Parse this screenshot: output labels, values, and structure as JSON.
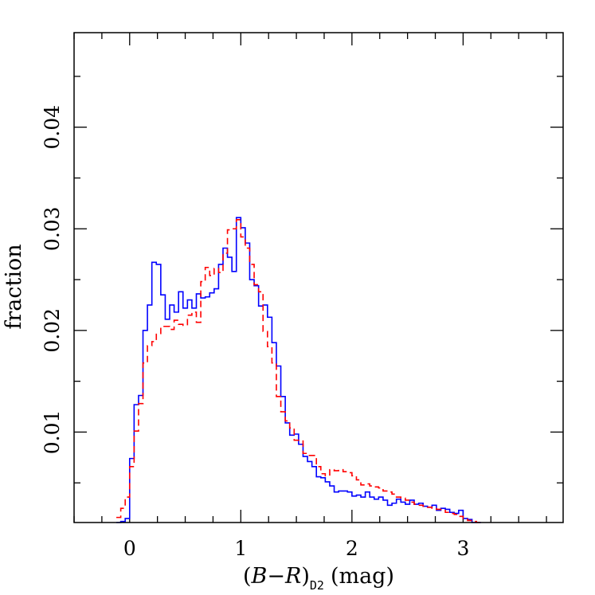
{
  "chart_data": {
    "type": "histogram",
    "xlabel": {
      "open": "(",
      "B": "B",
      "dash": "−",
      "R": "R",
      "close": ")",
      "subscript": "D2",
      "unit": "(mag)"
    },
    "ylabel": "fraction",
    "xlim": [
      -0.5,
      3.9
    ],
    "ylim": [
      0.0011,
      0.0493
    ],
    "x_ticks": [
      0,
      1,
      2,
      3
    ],
    "x_tick_labels": [
      "0",
      "1",
      "2",
      "3"
    ],
    "x_minor_step": 0.25,
    "y_ticks": [
      0.01,
      0.02,
      0.03,
      0.04
    ],
    "y_tick_labels": [
      "0.01",
      "0.02",
      "0.03",
      "0.04"
    ],
    "y_minor_step": 0.005,
    "bin_width": 0.04,
    "series": [
      {
        "style": "solid",
        "color": "#0000ff",
        "x": [
          -0.1,
          -0.06,
          -0.02,
          0.02,
          0.06,
          0.1,
          0.14,
          0.18,
          0.22,
          0.26,
          0.3,
          0.34,
          0.38,
          0.42,
          0.46,
          0.5,
          0.54,
          0.58,
          0.62,
          0.66,
          0.7,
          0.74,
          0.78,
          0.82,
          0.86,
          0.9,
          0.94,
          0.98,
          1.02,
          1.06,
          1.1,
          1.14,
          1.18,
          1.22,
          1.26,
          1.3,
          1.34,
          1.38,
          1.42,
          1.46,
          1.5,
          1.54,
          1.58,
          1.62,
          1.66,
          1.7,
          1.74,
          1.78,
          1.82,
          1.86,
          1.9,
          1.94,
          1.98,
          2.02,
          2.06,
          2.1,
          2.14,
          2.18,
          2.22,
          2.26,
          2.3,
          2.34,
          2.38,
          2.42,
          2.46,
          2.5,
          2.54,
          2.58,
          2.62,
          2.66,
          2.7,
          2.74,
          2.78,
          2.82,
          2.86,
          2.9,
          2.94,
          2.98,
          3.02,
          3.06,
          3.1,
          3.14
        ],
        "y": [
          0.0011,
          0.0012,
          0.0015,
          0.0074,
          0.0127,
          0.0136,
          0.02,
          0.0225,
          0.0267,
          0.0265,
          0.0235,
          0.0211,
          0.0225,
          0.0218,
          0.0238,
          0.0222,
          0.023,
          0.0222,
          0.0236,
          0.0232,
          0.0233,
          0.0237,
          0.0241,
          0.0265,
          0.0281,
          0.0272,
          0.0258,
          0.0311,
          0.0301,
          0.0286,
          0.025,
          0.0244,
          0.0224,
          0.0225,
          0.0213,
          0.0188,
          0.0165,
          0.0135,
          0.0109,
          0.0097,
          0.0098,
          0.0088,
          0.0076,
          0.0071,
          0.0066,
          0.0056,
          0.0055,
          0.0051,
          0.0047,
          0.0041,
          0.0042,
          0.0042,
          0.0041,
          0.0037,
          0.0038,
          0.0036,
          0.0041,
          0.0036,
          0.0034,
          0.0036,
          0.0033,
          0.0028,
          0.003,
          0.0034,
          0.0031,
          0.0029,
          0.0033,
          0.0029,
          0.003,
          0.0027,
          0.0026,
          0.0028,
          0.0023,
          0.0025,
          0.0024,
          0.0021,
          0.002,
          0.0023,
          0.0015,
          0.0014,
          0.0011,
          0.0011
        ]
      },
      {
        "style": "dashed",
        "color": "#ff0000",
        "x": [
          -0.1,
          -0.06,
          -0.02,
          0.02,
          0.06,
          0.1,
          0.14,
          0.18,
          0.22,
          0.26,
          0.3,
          0.34,
          0.38,
          0.42,
          0.46,
          0.5,
          0.54,
          0.58,
          0.62,
          0.66,
          0.7,
          0.74,
          0.78,
          0.82,
          0.86,
          0.9,
          0.94,
          0.98,
          1.02,
          1.06,
          1.1,
          1.14,
          1.18,
          1.22,
          1.26,
          1.3,
          1.34,
          1.38,
          1.42,
          1.46,
          1.5,
          1.54,
          1.58,
          1.62,
          1.66,
          1.7,
          1.74,
          1.78,
          1.82,
          1.86,
          1.9,
          1.94,
          1.98,
          2.02,
          2.06,
          2.1,
          2.14,
          2.18,
          2.22,
          2.26,
          2.3,
          2.34,
          2.38,
          2.42,
          2.46,
          2.5,
          2.54,
          2.58,
          2.62,
          2.66,
          2.7,
          2.74,
          2.78,
          2.82,
          2.86,
          2.9,
          2.94,
          2.98,
          3.02,
          3.06,
          3.1,
          3.14
        ],
        "y": [
          0.0016,
          0.0025,
          0.0036,
          0.0066,
          0.0101,
          0.0128,
          0.0168,
          0.0185,
          0.0189,
          0.0197,
          0.0204,
          0.0204,
          0.0201,
          0.021,
          0.0206,
          0.0205,
          0.0215,
          0.0218,
          0.0208,
          0.0248,
          0.0262,
          0.0254,
          0.0261,
          0.0257,
          0.0276,
          0.0299,
          0.03,
          0.0309,
          0.0292,
          0.0281,
          0.0265,
          0.0245,
          0.0238,
          0.0199,
          0.0184,
          0.0168,
          0.0135,
          0.012,
          0.0111,
          0.0104,
          0.0092,
          0.0092,
          0.0079,
          0.0077,
          0.0077,
          0.0066,
          0.0059,
          0.0057,
          0.0063,
          0.0062,
          0.0063,
          0.0061,
          0.006,
          0.0057,
          0.0053,
          0.0048,
          0.0049,
          0.0047,
          0.0046,
          0.0045,
          0.0042,
          0.0041,
          0.0039,
          0.0036,
          0.0035,
          0.0033,
          0.0031,
          0.0029,
          0.0028,
          0.0027,
          0.0026,
          0.0025,
          0.0024,
          0.0023,
          0.0021,
          0.002,
          0.0019,
          0.0017,
          0.0015,
          0.0013,
          0.0012,
          0.0011
        ]
      }
    ]
  }
}
